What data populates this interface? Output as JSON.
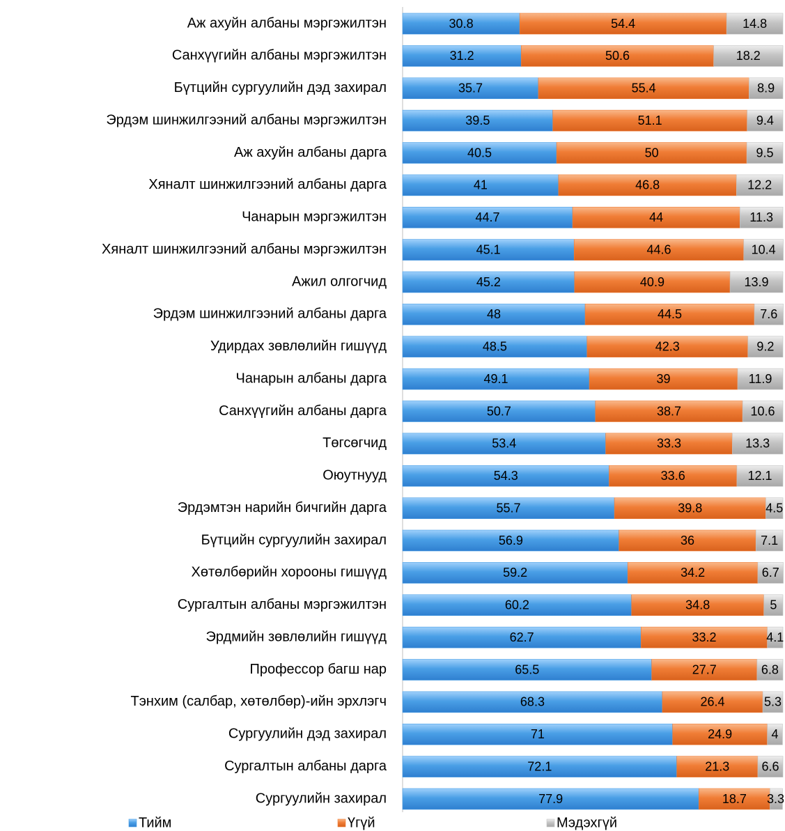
{
  "chart_data": {
    "type": "bar",
    "orientation": "horizontal",
    "stacked": true,
    "categories": [
      "Аж ахуйн албаны мэргэжилтэн",
      "Санхүүгийн албаны мэргэжилтэн",
      "Бүтцийн сургуулийн дэд захирал",
      "Эрдэм шинжилгээний албаны мэргэжилтэн",
      "Аж ахуйн албаны дарга",
      "Хяналт шинжилгээний албаны дарга",
      "Чанарын мэргэжилтэн",
      "Хяналт шинжилгээний албаны мэргэжилтэн",
      "Ажил олгогчид",
      "Эрдэм шинжилгээний албаны дарга",
      "Удирдах зөвлөлийн гишүүд",
      "Чанарын албаны дарга",
      "Санхүүгийн албаны дарга",
      "Төгсөгчид ",
      "Оюутнууд",
      "Эрдэмтэн нарийн бичгийн дарга",
      "Бүтцийн сургуулийн захирал",
      "Хөтөлбөрийн хорооны гишүүд",
      "Сургалтын албаны мэргэжилтэн",
      "Эрдмийн зөвлөлийн гишүүд",
      "Профессор багш нар",
      "Тэнхим (салбар, хөтөлбөр)-ийн эрхлэгч ",
      "Сургуулийн дэд захирал",
      "Сургалтын албаны дарга",
      "Сургуулийн захирал"
    ],
    "series": [
      {
        "name": "Тийм",
        "color": "#4a9fe6",
        "values": [
          30.8,
          31.2,
          35.7,
          39.5,
          40.5,
          41,
          44.7,
          45.1,
          45.2,
          48,
          48.5,
          49.1,
          50.7,
          53.4,
          54.3,
          55.7,
          56.9,
          59.2,
          60.2,
          62.7,
          65.5,
          68.3,
          71,
          72.1,
          77.9
        ]
      },
      {
        "name": "Үгүй",
        "color": "#f07d36",
        "values": [
          54.4,
          50.6,
          55.4,
          51.1,
          50,
          46.8,
          44,
          44.6,
          40.9,
          44.5,
          42.3,
          39,
          38.7,
          33.3,
          33.6,
          39.8,
          36,
          34.2,
          34.8,
          33.2,
          27.7,
          26.4,
          24.9,
          21.3,
          18.7
        ]
      },
      {
        "name": "Мэдэхгүй",
        "color": "#c4c4c4",
        "values": [
          14.8,
          18.2,
          8.9,
          9.4,
          9.5,
          12.2,
          11.3,
          10.4,
          13.9,
          7.6,
          9.2,
          11.9,
          10.6,
          13.3,
          12.1,
          4.5,
          7.1,
          6.7,
          5,
          4.1,
          6.8,
          5.3,
          4,
          6.6,
          3.3
        ]
      }
    ],
    "xlim": [
      0,
      100
    ],
    "legend": "bottom"
  }
}
